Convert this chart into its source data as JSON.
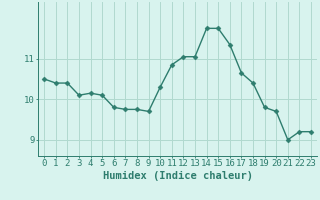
{
  "x": [
    0,
    1,
    2,
    3,
    4,
    5,
    6,
    7,
    8,
    9,
    10,
    11,
    12,
    13,
    14,
    15,
    16,
    17,
    18,
    19,
    20,
    21,
    22,
    23
  ],
  "y": [
    10.5,
    10.4,
    10.4,
    10.1,
    10.15,
    10.1,
    9.8,
    9.75,
    9.75,
    9.7,
    10.3,
    10.85,
    11.05,
    11.05,
    11.75,
    11.75,
    11.35,
    10.65,
    10.4,
    9.8,
    9.7,
    9.0,
    9.2,
    9.2
  ],
  "line_color": "#2e7d6e",
  "marker": "D",
  "marker_size": 2.5,
  "bg_color": "#d8f3ee",
  "grid_color": "#b0d9cf",
  "axis_color": "#2e7d6e",
  "xlabel": "Humidex (Indice chaleur)",
  "xlim": [
    -0.5,
    23.5
  ],
  "ylim": [
    8.6,
    12.4
  ],
  "yticks": [
    9,
    10,
    11
  ],
  "xticks": [
    0,
    1,
    2,
    3,
    4,
    5,
    6,
    7,
    8,
    9,
    10,
    11,
    12,
    13,
    14,
    15,
    16,
    17,
    18,
    19,
    20,
    21,
    22,
    23
  ],
  "tick_fontsize": 6.5,
  "label_fontsize": 7.5
}
